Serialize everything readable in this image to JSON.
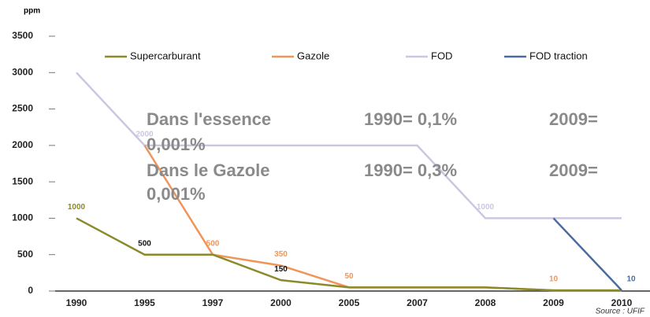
{
  "chart_data": {
    "type": "line",
    "y_label": "ppm",
    "source": "Source : UFIF",
    "categories": [
      "1990",
      "1995",
      "1997",
      "2000",
      "2005",
      "2007",
      "2008",
      "2009",
      "2010"
    ],
    "ylim": [
      0,
      3500
    ],
    "yticks": [
      0,
      500,
      1000,
      1500,
      2000,
      2500,
      3000,
      3500
    ],
    "grid": false,
    "series": [
      {
        "name": "Supercarburant",
        "color": "#8b8a2a",
        "values": [
          1000,
          500,
          500,
          150,
          50,
          50,
          50,
          10,
          10
        ],
        "value_labels": [
          "1000",
          "500",
          null,
          "150",
          null,
          null,
          null,
          null,
          null
        ]
      },
      {
        "name": "Gazole",
        "color": "#f0955a",
        "values": [
          null,
          2000,
          500,
          350,
          50,
          50,
          50,
          10,
          10
        ],
        "value_labels": [
          null,
          null,
          "500",
          "350",
          "50",
          null,
          null,
          "10",
          null
        ]
      },
      {
        "name": "FOD",
        "color": "#cdc6e2",
        "values": [
          3000,
          2000,
          2000,
          2000,
          2000,
          2000,
          1000,
          1000,
          1000
        ],
        "value_labels": [
          null,
          "2000",
          null,
          null,
          null,
          null,
          "1000",
          null,
          null
        ]
      },
      {
        "name": "FOD traction",
        "color": "#4a6aa0",
        "values": [
          null,
          null,
          null,
          null,
          null,
          null,
          null,
          1000,
          10
        ],
        "value_labels": [
          null,
          null,
          null,
          null,
          null,
          null,
          null,
          null,
          "10"
        ]
      }
    ],
    "annotations": [
      "Dans l'essence",
      "1990= 0,1%",
      "2009=",
      "0,001%",
      "Dans le Gazole",
      "1990= 0,3%",
      "2009=",
      "0,001%"
    ]
  }
}
